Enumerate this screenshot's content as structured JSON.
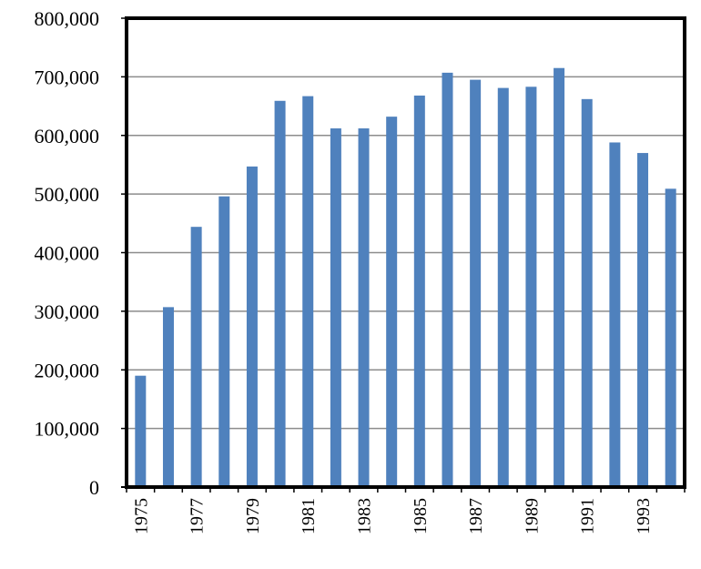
{
  "chart_data": {
    "type": "bar",
    "title": "",
    "xlabel": "",
    "ylabel": "",
    "categories": [
      "1975",
      "1976",
      "1977",
      "1978",
      "1979",
      "1980",
      "1981",
      "1982",
      "1983",
      "1984",
      "1985",
      "1986",
      "1987",
      "1988",
      "1989",
      "1990",
      "1991",
      "1992",
      "1993",
      "1994"
    ],
    "x_tick_labels": [
      "1975",
      "1977",
      "1979",
      "1981",
      "1983",
      "1985",
      "1987",
      "1989",
      "1991",
      "1993"
    ],
    "values": [
      190000,
      307000,
      444000,
      496000,
      547000,
      659000,
      667000,
      612000,
      612000,
      632000,
      668000,
      707000,
      695000,
      681000,
      683000,
      715000,
      662000,
      588000,
      570000,
      509000
    ],
    "ylim": [
      0,
      800000
    ],
    "y_ticks": [
      0,
      100000,
      200000,
      300000,
      400000,
      500000,
      600000,
      700000,
      800000
    ],
    "y_tick_labels": [
      "0",
      "100,000",
      "200,000",
      "300,000",
      "400,000",
      "500,000",
      "600,000",
      "700,000",
      "800,000"
    ],
    "grid": "horizontal",
    "legend": "none",
    "bar_color": "#4f81bd",
    "grid_color": "#8c8c8c",
    "frame_color": "#000000"
  }
}
